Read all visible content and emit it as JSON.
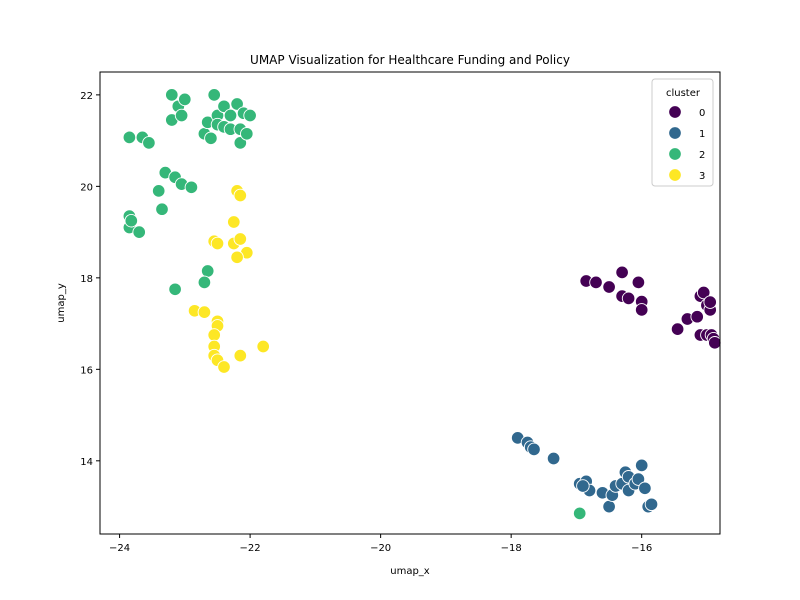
{
  "chart_data": {
    "type": "scatter",
    "title": "UMAP Visualization for Healthcare Funding and Policy",
    "xlabel": "umap_x",
    "ylabel": "umap_y",
    "xlim": [
      -24.3,
      -14.8
    ],
    "ylim": [
      12.4,
      22.5
    ],
    "xticks": [
      -24,
      -22,
      -20,
      -18,
      -16
    ],
    "yticks": [
      14,
      16,
      18,
      20,
      22
    ],
    "grid": false,
    "legend": {
      "title": "cluster",
      "placement": "top-right"
    },
    "series": [
      {
        "name": "0",
        "color": "#440154",
        "points": [
          [
            -16.85,
            17.93
          ],
          [
            -16.7,
            17.9
          ],
          [
            -16.5,
            17.8
          ],
          [
            -16.3,
            18.12
          ],
          [
            -16.3,
            17.6
          ],
          [
            -16.2,
            17.55
          ],
          [
            -16.05,
            17.9
          ],
          [
            -16.0,
            17.48
          ],
          [
            -16.0,
            17.3
          ],
          [
            -15.45,
            16.88
          ],
          [
            -15.3,
            17.1
          ],
          [
            -15.15,
            17.15
          ],
          [
            -15.1,
            16.75
          ],
          [
            -15.1,
            17.6
          ],
          [
            -15.05,
            17.68
          ],
          [
            -15.0,
            16.75
          ],
          [
            -15.0,
            17.4
          ],
          [
            -14.95,
            17.3
          ],
          [
            -14.95,
            17.47
          ],
          [
            -14.93,
            16.75
          ],
          [
            -14.9,
            16.67
          ],
          [
            -14.88,
            16.58
          ]
        ]
      },
      {
        "name": "1",
        "color": "#31688e",
        "points": [
          [
            -17.9,
            14.5
          ],
          [
            -17.75,
            14.4
          ],
          [
            -17.7,
            14.3
          ],
          [
            -17.65,
            14.25
          ],
          [
            -17.35,
            14.05
          ],
          [
            -16.95,
            13.5
          ],
          [
            -16.85,
            13.55
          ],
          [
            -16.8,
            13.35
          ],
          [
            -16.6,
            13.3
          ],
          [
            -16.5,
            13.0
          ],
          [
            -16.45,
            13.25
          ],
          [
            -16.4,
            13.45
          ],
          [
            -16.3,
            13.5
          ],
          [
            -16.25,
            13.75
          ],
          [
            -16.2,
            13.65
          ],
          [
            -16.2,
            13.35
          ],
          [
            -16.1,
            13.5
          ],
          [
            -16.05,
            13.6
          ],
          [
            -16.0,
            13.9
          ],
          [
            -15.95,
            13.4
          ],
          [
            -15.9,
            13.0
          ],
          [
            -15.85,
            13.05
          ],
          [
            -16.9,
            13.45
          ]
        ]
      },
      {
        "name": "2",
        "color": "#35b779",
        "points": [
          [
            -23.85,
            21.07
          ],
          [
            -23.65,
            21.07
          ],
          [
            -23.55,
            20.95
          ],
          [
            -23.2,
            22.0
          ],
          [
            -23.2,
            21.45
          ],
          [
            -23.1,
            21.75
          ],
          [
            -23.05,
            21.55
          ],
          [
            -23.0,
            21.9
          ],
          [
            -22.7,
            21.15
          ],
          [
            -22.65,
            21.4
          ],
          [
            -22.6,
            21.05
          ],
          [
            -22.55,
            22.0
          ],
          [
            -22.5,
            21.55
          ],
          [
            -22.5,
            21.35
          ],
          [
            -22.4,
            21.3
          ],
          [
            -22.4,
            21.75
          ],
          [
            -22.3,
            21.55
          ],
          [
            -22.3,
            21.25
          ],
          [
            -22.2,
            21.8
          ],
          [
            -22.15,
            21.25
          ],
          [
            -22.15,
            20.95
          ],
          [
            -22.1,
            21.6
          ],
          [
            -22.05,
            21.15
          ],
          [
            -22.0,
            21.55
          ],
          [
            -23.3,
            20.3
          ],
          [
            -23.4,
            19.9
          ],
          [
            -23.15,
            20.2
          ],
          [
            -23.05,
            20.05
          ],
          [
            -22.9,
            19.98
          ],
          [
            -23.35,
            19.5
          ],
          [
            -23.85,
            19.35
          ],
          [
            -23.85,
            19.1
          ],
          [
            -23.82,
            19.25
          ],
          [
            -23.7,
            19.0
          ],
          [
            -22.65,
            18.15
          ],
          [
            -22.7,
            17.9
          ],
          [
            -23.15,
            17.75
          ],
          [
            -16.95,
            12.85
          ]
        ]
      },
      {
        "name": "3",
        "color": "#fde725",
        "points": [
          [
            -22.2,
            19.9
          ],
          [
            -22.15,
            19.8
          ],
          [
            -22.25,
            19.22
          ],
          [
            -22.55,
            18.8
          ],
          [
            -22.5,
            18.75
          ],
          [
            -22.25,
            18.75
          ],
          [
            -22.15,
            18.85
          ],
          [
            -22.05,
            18.55
          ],
          [
            -22.2,
            18.45
          ],
          [
            -22.85,
            17.28
          ],
          [
            -22.7,
            17.25
          ],
          [
            -22.5,
            17.05
          ],
          [
            -22.5,
            16.95
          ],
          [
            -22.55,
            16.75
          ],
          [
            -22.55,
            16.5
          ],
          [
            -22.55,
            16.3
          ],
          [
            -22.5,
            16.2
          ],
          [
            -22.4,
            16.05
          ],
          [
            -22.15,
            16.3
          ],
          [
            -21.8,
            16.5
          ]
        ]
      }
    ]
  }
}
